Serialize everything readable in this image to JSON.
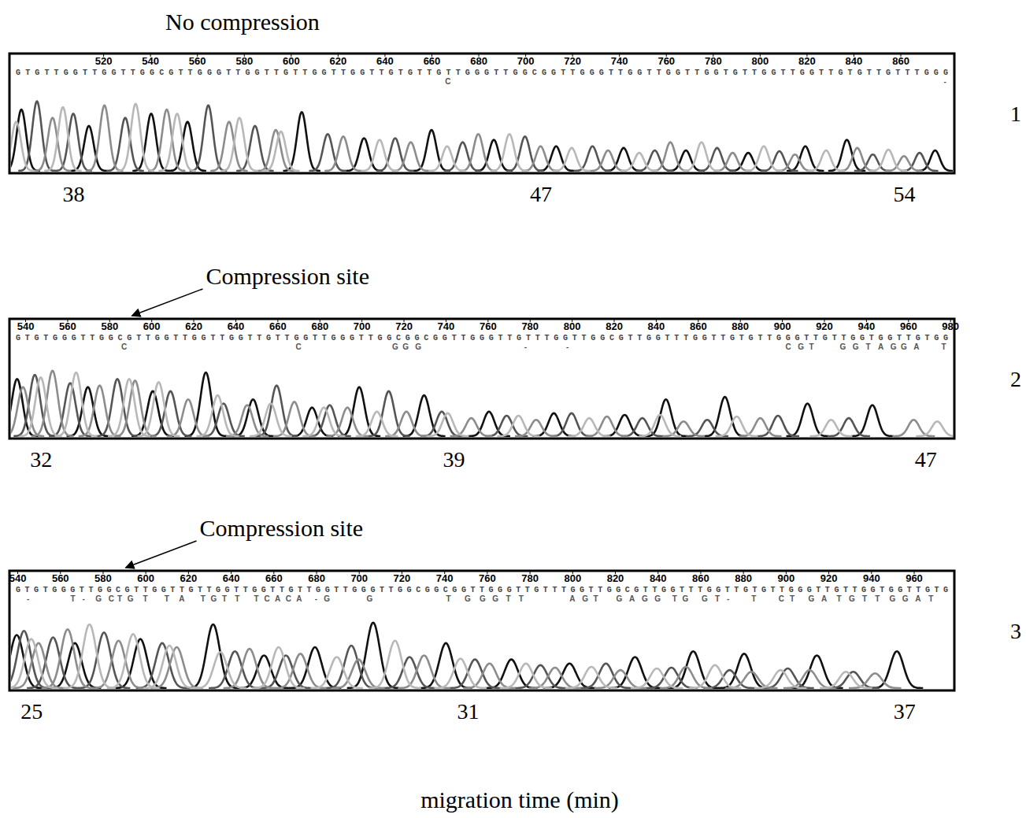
{
  "chart_data": [
    {
      "type": "line",
      "title": "No compression",
      "label": "1",
      "sequence": "GTGTTGGTTGGTTGGCGTTGGGTTGGTTGTTGGTTGGTTGTGTTGTTGGGTTGGCGGTTGGGTTGGTTGGTTGGTGTTGGTTGGTTGTGTTGTTTGGG",
      "secondary_calls": [
        {
          "x": 667,
          "text": "C"
        },
        {
          "x": 879,
          "text": "-"
        }
      ],
      "x2lim": [
        480,
        883
      ],
      "x2ticks": [
        520,
        540,
        560,
        580,
        600,
        620,
        640,
        660,
        680,
        700,
        720,
        740,
        760,
        780,
        800,
        820,
        840,
        860
      ],
      "xlim": [
        36.77,
        54.97
      ],
      "xticks": [
        38,
        47,
        54
      ],
      "ylim": [
        0,
        100
      ],
      "tick_labels": "x",
      "series": [
        {
          "color": "#111111",
          "x": [
            37.0,
            38.3,
            39.5,
            40.2,
            42.4,
            43.6,
            44.9,
            46.1,
            47.3,
            48.6,
            49.8,
            51.0,
            52.1,
            52.9,
            54.6
          ],
          "values": [
            75,
            55,
            70,
            60,
            72,
            40,
            50,
            38,
            30,
            28,
            25,
            22,
            30,
            38,
            25
          ]
        },
        {
          "color": "#555555",
          "x": [
            37.3,
            38.0,
            39.0,
            40.6,
            41.5,
            42.9,
            44.2,
            45.5,
            46.7,
            48.0,
            49.2,
            50.4,
            51.6,
            53.4,
            54.3
          ],
          "values": [
            85,
            70,
            65,
            80,
            55,
            45,
            40,
            35,
            42,
            30,
            25,
            28,
            24,
            20,
            22
          ]
        },
        {
          "color": "#8c8c8c",
          "x": [
            37.6,
            38.6,
            39.8,
            41.0,
            41.9,
            43.2,
            44.5,
            45.8,
            47.0,
            48.3,
            49.5,
            50.7,
            51.9,
            53.1,
            54.0
          ],
          "values": [
            65,
            80,
            75,
            60,
            50,
            42,
            35,
            45,
            30,
            25,
            35,
            22,
            20,
            28,
            18
          ]
        },
        {
          "color": "#b8b8b8",
          "x": [
            36.9,
            37.8,
            39.2,
            40.0,
            41.2,
            42.0,
            43.9,
            45.2,
            46.4,
            47.6,
            48.9,
            50.1,
            51.3,
            52.5,
            53.7
          ],
          "values": [
            60,
            78,
            82,
            70,
            65,
            48,
            38,
            30,
            45,
            28,
            22,
            35,
            30,
            25,
            26
          ]
        }
      ]
    },
    {
      "type": "line",
      "label": "2",
      "annotations": [
        {
          "text": "Compression site",
          "x": 590
        }
      ],
      "sequence": "GTGTGGGTTGGCGTTGGTTGGTTGGTTGTTGGTTGGGTTGGCGGCGGTTGGGTTGTTTGGTTGGCGTTGGTTTGGTTGTGTTGGGTTGTTGGTGGTTGTGG",
      "secondary_calls": [
        {
          "x": 587,
          "text": "C"
        },
        {
          "x": 670,
          "text": "C"
        },
        {
          "x": 716,
          "text": "G"
        },
        {
          "x": 721,
          "text": "G"
        },
        {
          "x": 727,
          "text": "G"
        },
        {
          "x": 778,
          "text": "-"
        },
        {
          "x": 798,
          "text": "-"
        },
        {
          "x": 903,
          "text": "C"
        },
        {
          "x": 909,
          "text": "G"
        },
        {
          "x": 914,
          "text": "T"
        },
        {
          "x": 929,
          "text": "G"
        },
        {
          "x": 935,
          "text": "G"
        },
        {
          "x": 941,
          "text": "T"
        },
        {
          "x": 947,
          "text": "A"
        },
        {
          "x": 953,
          "text": "G"
        },
        {
          "x": 958,
          "text": "G"
        },
        {
          "x": 964,
          "text": "A"
        },
        {
          "x": 977,
          "text": "T"
        }
      ],
      "x2lim": [
        532.5,
        982
      ],
      "x2ticks": [
        540,
        560,
        580,
        600,
        620,
        640,
        660,
        680,
        700,
        720,
        740,
        760,
        780,
        800,
        820,
        840,
        860,
        880,
        900,
        920,
        940,
        960,
        980
      ],
      "xlim": [
        31.47,
        47.49
      ],
      "xticks": [
        32,
        39,
        47
      ],
      "ylim": [
        0,
        100
      ],
      "tick_labels": "x",
      "series": [
        {
          "color": "#111111",
          "x": [
            31.6,
            32.8,
            33.9,
            34.8,
            35.6,
            36.6,
            37.4,
            38.5,
            39.6,
            40.7,
            41.9,
            42.6,
            43.6,
            45.0,
            46.1
          ],
          "values": [
            70,
            60,
            55,
            78,
            45,
            35,
            60,
            50,
            30,
            28,
            26,
            45,
            48,
            40,
            38
          ]
        },
        {
          "color": "#555555",
          "x": [
            31.9,
            32.5,
            33.3,
            34.2,
            35.1,
            36.0,
            36.9,
            37.9,
            38.8,
            39.9,
            41.0,
            42.2,
            43.3,
            44.5,
            45.7
          ],
          "values": [
            75,
            65,
            70,
            55,
            40,
            62,
            38,
            55,
            30,
            25,
            28,
            22,
            20,
            25,
            22
          ]
        },
        {
          "color": "#8c8c8c",
          "x": [
            31.7,
            32.2,
            33.0,
            33.6,
            34.5,
            35.5,
            36.3,
            37.2,
            38.2,
            39.3,
            40.4,
            41.6,
            42.9,
            44.2,
            46.8
          ],
          "values": [
            60,
            80,
            62,
            68,
            45,
            38,
            42,
            35,
            30,
            22,
            20,
            24,
            18,
            22,
            20
          ]
        },
        {
          "color": "#b8b8b8",
          "x": [
            32.0,
            32.6,
            33.5,
            34.0,
            35.0,
            35.9,
            36.8,
            37.7,
            38.9,
            40.1,
            41.3,
            42.5,
            43.8,
            45.4,
            47.2
          ],
          "values": [
            72,
            78,
            70,
            66,
            50,
            40,
            35,
            30,
            28,
            25,
            22,
            26,
            24,
            20,
            18
          ]
        }
      ]
    },
    {
      "type": "line",
      "label": "3",
      "xlabel": "migration time (min)",
      "annotations": [
        {
          "text": "Compression site",
          "x": 590
        }
      ],
      "sequence": "GTGTGGGTTGGCGTTGGTTGTTGGTTGGTTGTTGGTTGGGTTGGCGGCGGTTGGGTTGTTTGGTTGGCGTTGGTTTGGTTGTGTTGGGTTGTTGGTGGTTGTG",
      "secondary_calls": [
        {
          "x": 545,
          "text": "-"
        },
        {
          "x": 566,
          "text": "T"
        },
        {
          "x": 571,
          "text": "-"
        },
        {
          "x": 578,
          "text": "G"
        },
        {
          "x": 584,
          "text": "C"
        },
        {
          "x": 588,
          "text": "T"
        },
        {
          "x": 593,
          "text": "G"
        },
        {
          "x": 600,
          "text": "T"
        },
        {
          "x": 610,
          "text": "T"
        },
        {
          "x": 617,
          "text": "A"
        },
        {
          "x": 627,
          "text": "T"
        },
        {
          "x": 632,
          "text": "G"
        },
        {
          "x": 637,
          "text": "T"
        },
        {
          "x": 643,
          "text": "T"
        },
        {
          "x": 652,
          "text": "T"
        },
        {
          "x": 657,
          "text": "C"
        },
        {
          "x": 662,
          "text": "A"
        },
        {
          "x": 667,
          "text": "C"
        },
        {
          "x": 672,
          "text": "A"
        },
        {
          "x": 680,
          "text": "-"
        },
        {
          "x": 685,
          "text": "G"
        },
        {
          "x": 705,
          "text": "G"
        },
        {
          "x": 742,
          "text": "T"
        },
        {
          "x": 751,
          "text": "G"
        },
        {
          "x": 758,
          "text": "G"
        },
        {
          "x": 764,
          "text": "G"
        },
        {
          "x": 770,
          "text": "T"
        },
        {
          "x": 776,
          "text": "T"
        },
        {
          "x": 800,
          "text": "A"
        },
        {
          "x": 806,
          "text": "G"
        },
        {
          "x": 811,
          "text": "T"
        },
        {
          "x": 822,
          "text": "G"
        },
        {
          "x": 828,
          "text": "A"
        },
        {
          "x": 834,
          "text": "G"
        },
        {
          "x": 840,
          "text": "G"
        },
        {
          "x": 848,
          "text": "T"
        },
        {
          "x": 853,
          "text": "G"
        },
        {
          "x": 862,
          "text": "G"
        },
        {
          "x": 868,
          "text": "T"
        },
        {
          "x": 873,
          "text": "-"
        },
        {
          "x": 885,
          "text": "T"
        },
        {
          "x": 898,
          "text": "C"
        },
        {
          "x": 903,
          "text": "T"
        },
        {
          "x": 912,
          "text": "G"
        },
        {
          "x": 918,
          "text": "A"
        },
        {
          "x": 925,
          "text": "T"
        },
        {
          "x": 931,
          "text": "G"
        },
        {
          "x": 937,
          "text": "T"
        },
        {
          "x": 943,
          "text": "T"
        },
        {
          "x": 950,
          "text": "G"
        },
        {
          "x": 956,
          "text": "G"
        },
        {
          "x": 962,
          "text": "A"
        },
        {
          "x": 968,
          "text": "T"
        }
      ],
      "x2lim": [
        536.3,
        979
      ],
      "x2ticks": [
        540,
        560,
        580,
        600,
        620,
        640,
        660,
        680,
        700,
        720,
        740,
        760,
        780,
        800,
        820,
        840,
        860,
        880,
        900,
        920,
        940,
        960
      ],
      "xlim": [
        24.7,
        37.69
      ],
      "xticks": [
        25,
        31,
        37
      ],
      "ylim": [
        0,
        100
      ],
      "tick_labels": "x",
      "series": [
        {
          "color": "#111111",
          "x": [
            24.8,
            25.6,
            26.5,
            27.5,
            28.2,
            28.9,
            29.7,
            30.7,
            31.6,
            32.4,
            33.3,
            34.1,
            34.8,
            35.8,
            36.9
          ],
          "values": [
            65,
            55,
            60,
            78,
            40,
            50,
            80,
            55,
            35,
            30,
            38,
            45,
            42,
            40,
            45
          ]
        },
        {
          "color": "#555555",
          "x": [
            24.9,
            25.3,
            26.0,
            26.8,
            27.8,
            28.5,
            29.4,
            30.2,
            31.1,
            32.0,
            32.9,
            33.8,
            34.6,
            35.4,
            36.3
          ],
          "values": [
            70,
            62,
            68,
            55,
            45,
            40,
            52,
            38,
            35,
            28,
            30,
            25,
            22,
            24,
            20
          ]
        },
        {
          "color": "#8c8c8c",
          "x": [
            25.1,
            25.5,
            26.2,
            27.0,
            28.0,
            28.7,
            29.5,
            30.4,
            31.3,
            32.2,
            33.1,
            34.0,
            34.9,
            35.7,
            36.6
          ],
          "values": [
            55,
            72,
            58,
            50,
            48,
            42,
            35,
            40,
            30,
            25,
            22,
            26,
            20,
            22,
            18
          ]
        },
        {
          "color": "#b8b8b8",
          "x": [
            25.0,
            25.8,
            26.4,
            26.9,
            27.6,
            28.4,
            29.2,
            30.0,
            30.9,
            31.8,
            32.7,
            33.6,
            34.4,
            35.3,
            36.2
          ],
          "values": [
            60,
            78,
            66,
            52,
            44,
            50,
            38,
            58,
            36,
            30,
            26,
            24,
            28,
            22,
            20
          ]
        }
      ]
    }
  ]
}
